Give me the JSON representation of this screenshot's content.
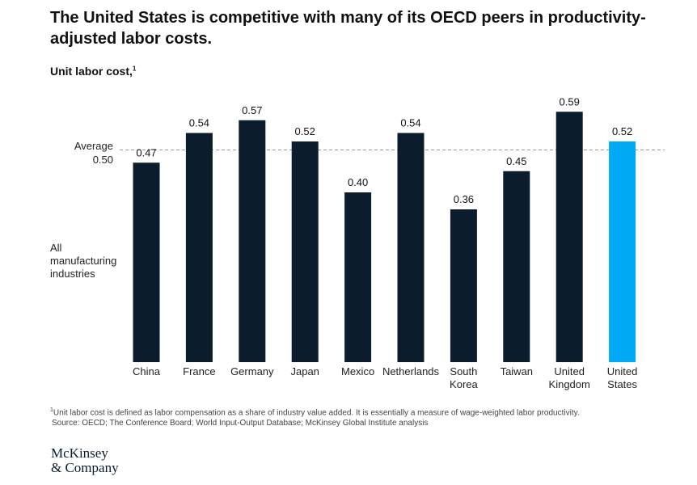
{
  "header": {
    "title": "The United States is competitive with many of its OECD peers in productivity-adjusted labor costs.",
    "subtitle": "Unit labor cost,",
    "subtitle_sup": "1"
  },
  "side_label": "All manufacturing industries",
  "average": {
    "label": "Average",
    "value_text": "0.50"
  },
  "chart_data": {
    "type": "bar",
    "categories": [
      "China",
      "France",
      "Germany",
      "Japan",
      "Mexico",
      "Netherlands",
      "South Korea",
      "Taiwan",
      "United Kingdom",
      "United States"
    ],
    "category_lines": [
      [
        "China"
      ],
      [
        "France"
      ],
      [
        "Germany"
      ],
      [
        "Japan"
      ],
      [
        "Mexico"
      ],
      [
        "Netherlands"
      ],
      [
        "South",
        "Korea"
      ],
      [
        "Taiwan"
      ],
      [
        "United",
        "Kingdom"
      ],
      [
        "United",
        "States"
      ]
    ],
    "values": [
      0.47,
      0.54,
      0.57,
      0.52,
      0.4,
      0.54,
      0.36,
      0.45,
      0.59,
      0.52
    ],
    "value_labels": [
      "0.47",
      "0.54",
      "0.57",
      "0.52",
      "0.40",
      "0.54",
      "0.36",
      "0.45",
      "0.59",
      "0.52"
    ],
    "highlight_index": 9,
    "reference_line": 0.5,
    "ylim": [
      0,
      0.6
    ],
    "colors": {
      "bar": "#0b1c2c",
      "highlight": "#00a9f4",
      "reference": "#999999"
    },
    "xlabel": "",
    "ylabel": ""
  },
  "footnote": {
    "sup": "1",
    "line1": "Unit labor cost is defined as labor compensation as a share of industry value added. It is essentially a measure of wage-weighted labor productivity.",
    "line2": "Source: OECD; The Conference Board; World Input-Output Database; McKinsey Global Institute analysis"
  },
  "logo": {
    "line1": "McKinsey",
    "line2": "& Company"
  }
}
